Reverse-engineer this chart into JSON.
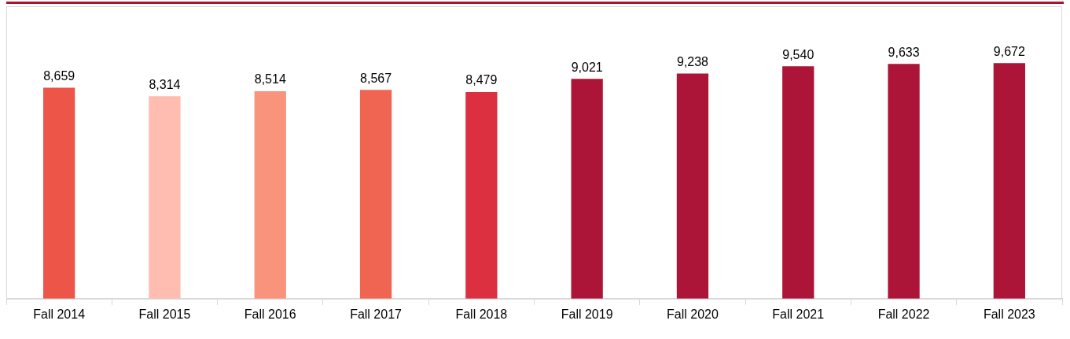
{
  "chart_data": {
    "type": "bar",
    "categories": [
      "Fall 2014",
      "Fall 2015",
      "Fall 2016",
      "Fall 2017",
      "Fall 2018",
      "Fall 2019",
      "Fall 2020",
      "Fall 2021",
      "Fall 2022",
      "Fall 2023"
    ],
    "values": [
      8659,
      8314,
      8514,
      8567,
      8479,
      9021,
      9238,
      9540,
      9633,
      9672
    ],
    "colors": [
      "#ee5549",
      "#ffbcb0",
      "#f9937b",
      "#f06452",
      "#dc3040",
      "#ad1538",
      "#ad1538",
      "#ad1538",
      "#ad1538",
      "#ad1538"
    ],
    "value_labels": [
      "8,659",
      "8,314",
      "8,514",
      "8,567",
      "8,479",
      "9,021",
      "9,238",
      "9,540",
      "9,633",
      "9,672"
    ],
    "grid": false,
    "legend": false
  }
}
